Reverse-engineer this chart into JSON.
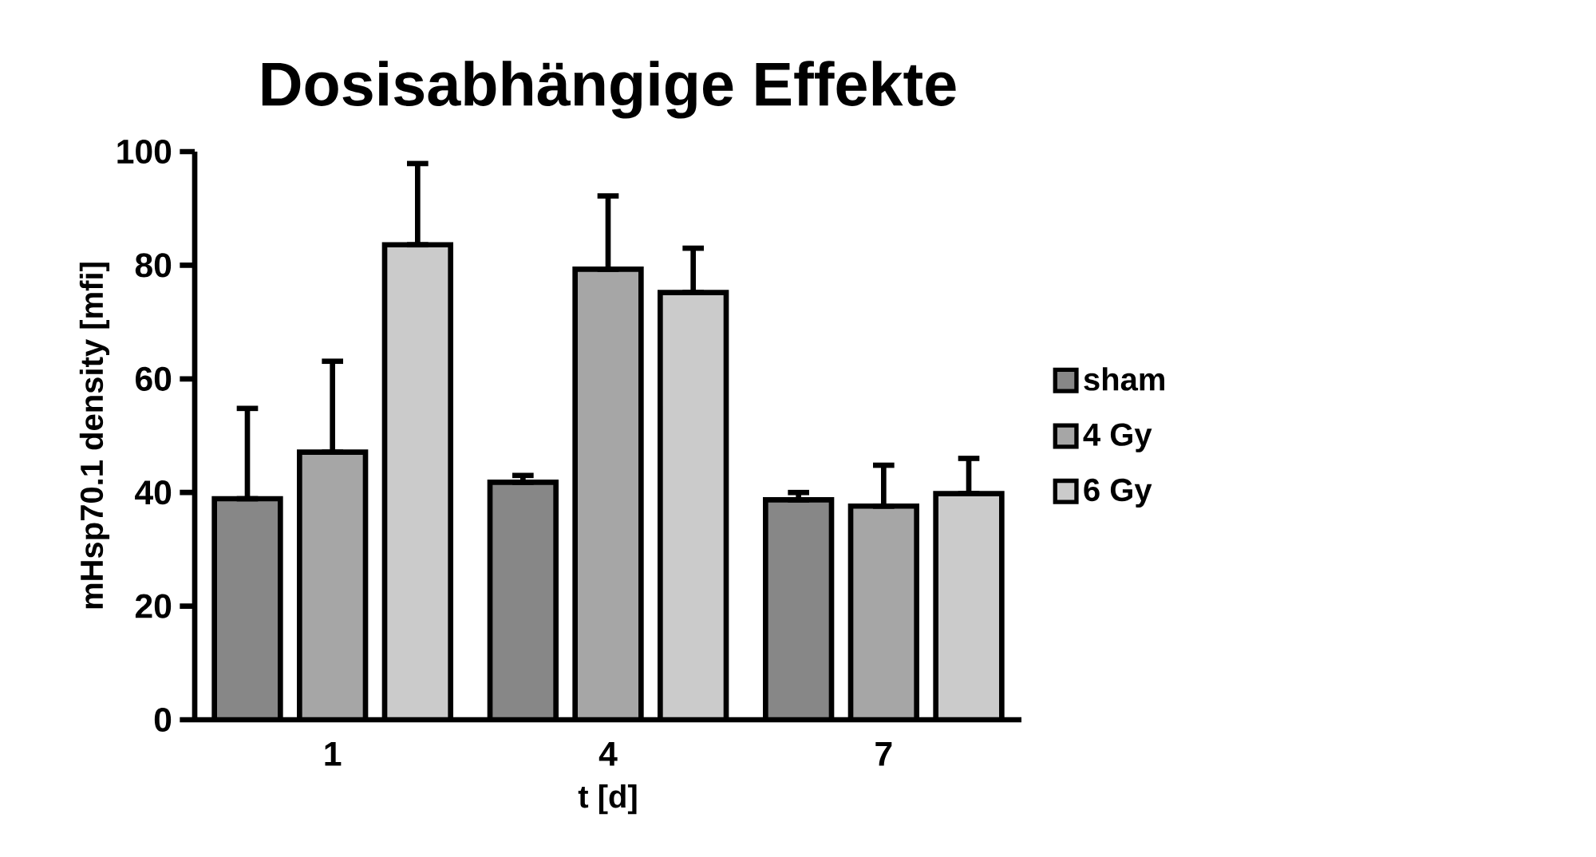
{
  "chart_data": {
    "type": "bar",
    "title": "Dosisabhängige Effekte",
    "xlabel": "t [d]",
    "ylabel": "mHsp70.1 density [mfi]",
    "categories": [
      "1",
      "4",
      "7"
    ],
    "series": [
      {
        "name": "sham",
        "color": "#878787",
        "values": [
          38.9,
          41.8,
          38.7
        ],
        "errors": [
          [
            38.9,
            54.8
          ],
          [
            41.8,
            43.0
          ],
          [
            38.7,
            40.0
          ]
        ]
      },
      {
        "name": "4 Gy",
        "color": "#a6a6a6",
        "values": [
          47.1,
          79.3,
          37.6
        ],
        "errors": [
          [
            47.1,
            63.1
          ],
          [
            79.3,
            92.2
          ],
          [
            37.6,
            44.8
          ]
        ]
      },
      {
        "name": "6 Gy",
        "color": "#cbcbcb",
        "values": [
          83.6,
          75.2,
          39.8
        ],
        "errors": [
          [
            83.6,
            97.9
          ],
          [
            75.2,
            83.0
          ],
          [
            39.8,
            46.0
          ]
        ]
      }
    ],
    "ylim": [
      0,
      100
    ],
    "yticks": [
      0,
      20,
      40,
      60,
      80,
      100
    ],
    "legend": "right"
  }
}
